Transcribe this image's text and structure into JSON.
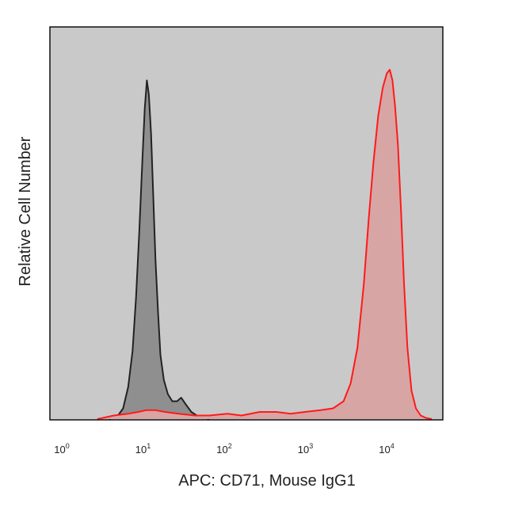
{
  "chart_data": {
    "type": "area",
    "title": "",
    "xlabel": "APC: CD71, Mouse IgG1",
    "ylabel": "Relative Cell Number",
    "x_scale": "log",
    "xlim": [
      1,
      40000
    ],
    "ylim": [
      0,
      1
    ],
    "y_ticks": false,
    "x_ticks": [
      {
        "base": "10",
        "exp": "0",
        "value": 1
      },
      {
        "base": "10",
        "exp": "1",
        "value": 10
      },
      {
        "base": "10",
        "exp": "2",
        "value": 100
      },
      {
        "base": "10",
        "exp": "3",
        "value": 1000
      },
      {
        "base": "10",
        "exp": "4",
        "value": 10000
      }
    ],
    "plot_background": "#c9c9c9",
    "series": [
      {
        "color": "#222222",
        "fill": "#8f8f8f",
        "x": [
          3.5,
          4.5,
          5.2,
          6,
          6.8,
          7.5,
          8.2,
          9,
          9.6,
          10.2,
          10.8,
          11.5,
          12.2,
          13,
          14,
          15,
          16.5,
          18.5,
          21,
          24,
          27,
          31,
          36,
          42,
          50,
          60
        ],
        "y": [
          0.0,
          0.01,
          0.03,
          0.09,
          0.19,
          0.34,
          0.52,
          0.73,
          0.87,
          0.95,
          0.91,
          0.8,
          0.63,
          0.45,
          0.3,
          0.18,
          0.11,
          0.07,
          0.05,
          0.05,
          0.06,
          0.04,
          0.02,
          0.01,
          0.005,
          0.0
        ]
      },
      {
        "color": "#ff1a1a",
        "fill": "#d8a5a5",
        "x": [
          2.5,
          4,
          6,
          8,
          10,
          13,
          17,
          25,
          40,
          60,
          100,
          150,
          250,
          400,
          600,
          900,
          1400,
          2000,
          2700,
          3300,
          4000,
          4800,
          5500,
          6300,
          7200,
          8200,
          9200,
          10000,
          10800,
          11600,
          12600,
          13800,
          15000,
          16500,
          18500,
          21000,
          24000,
          28000,
          33000
        ],
        "y": [
          0.0,
          0.01,
          0.015,
          0.02,
          0.025,
          0.025,
          0.02,
          0.015,
          0.01,
          0.01,
          0.015,
          0.01,
          0.02,
          0.02,
          0.015,
          0.02,
          0.025,
          0.03,
          0.05,
          0.1,
          0.2,
          0.38,
          0.56,
          0.72,
          0.85,
          0.93,
          0.97,
          0.98,
          0.95,
          0.88,
          0.77,
          0.58,
          0.38,
          0.2,
          0.08,
          0.03,
          0.01,
          0.003,
          0.0
        ]
      }
    ]
  }
}
